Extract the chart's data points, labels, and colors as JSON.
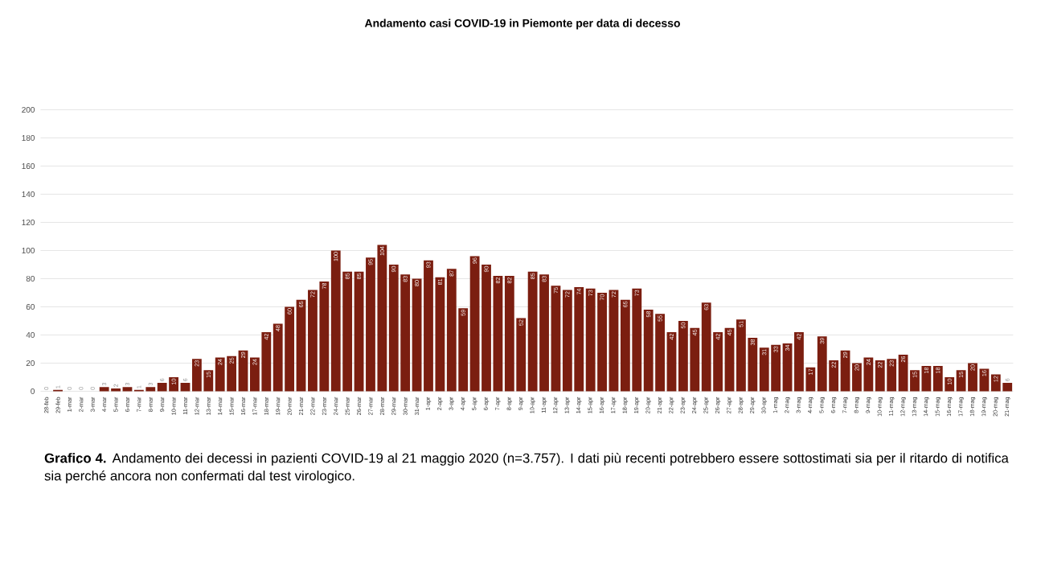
{
  "chart_data": {
    "type": "bar",
    "title": "Andamento casi COVID-19 in Piemonte per data di decesso",
    "categories": [
      "28-feb",
      "29-feb",
      "1-mar",
      "2-mar",
      "3-mar",
      "4-mar",
      "5-mar",
      "6-mar",
      "7-mar",
      "8-mar",
      "9-mar",
      "10-mar",
      "11-mar",
      "12-mar",
      "13-mar",
      "14-mar",
      "15-mar",
      "16-mar",
      "17-mar",
      "18-mar",
      "19-mar",
      "20-mar",
      "21-mar",
      "22-mar",
      "23-mar",
      "24-mar",
      "25-mar",
      "26-mar",
      "27-mar",
      "28-mar",
      "29-mar",
      "30-mar",
      "31-mar",
      "1-apr",
      "2-apr",
      "3-apr",
      "4-apr",
      "5-apr",
      "6-apr",
      "7-apr",
      "8-apr",
      "9-apr",
      "10-apr",
      "11-apr",
      "12-apr",
      "13-apr",
      "14-apr",
      "15-apr",
      "16-apr",
      "17-apr",
      "18-apr",
      "19-apr",
      "20-apr",
      "21-apr",
      "22-apr",
      "23-apr",
      "24-apr",
      "25-apr",
      "26-apr",
      "27-apr",
      "28-apr",
      "29-apr",
      "30-apr",
      "1-mag",
      "2-mag",
      "3-mag",
      "4-mag",
      "5-mag",
      "6-mag",
      "7-mag",
      "8-mag",
      "9-mag",
      "10-mag",
      "11-mag",
      "12-mag",
      "13-mag",
      "14-mag",
      "15-mag",
      "16-mag",
      "17-mag",
      "18-mag",
      "19-mag",
      "20-mag",
      "21-mag"
    ],
    "values": [
      0,
      1,
      0,
      0,
      0,
      3,
      2,
      3,
      1,
      3,
      6,
      10,
      6,
      23,
      15,
      24,
      25,
      29,
      24,
      42,
      48,
      60,
      65,
      72,
      78,
      100,
      85,
      85,
      95,
      104,
      90,
      83,
      80,
      93,
      81,
      87,
      59,
      96,
      90,
      82,
      82,
      52,
      85,
      83,
      75,
      72,
      74,
      73,
      70,
      72,
      65,
      73,
      58,
      55,
      42,
      50,
      45,
      63,
      42,
      45,
      51,
      38,
      31,
      33,
      34,
      42,
      17,
      39,
      22,
      29,
      20,
      24,
      22,
      23,
      26,
      15,
      18,
      18,
      10,
      15,
      20,
      16,
      12,
      6
    ],
    "color": "#7b1e10",
    "ylim": [
      0,
      200
    ],
    "yticks": [
      0,
      20,
      40,
      60,
      80,
      100,
      120,
      140,
      160,
      180,
      200
    ],
    "grid": "y",
    "data_labels": true,
    "annotations": [
      "**Grafico 4.** Andamento dei decessi in pazienti COVID-19 al 21 maggio 2020 (n=3.757). I dati più recenti potrebbero essere sottostimati sia per il ritardo di notifica sia perché ancora non confermati dal test virologico."
    ]
  }
}
